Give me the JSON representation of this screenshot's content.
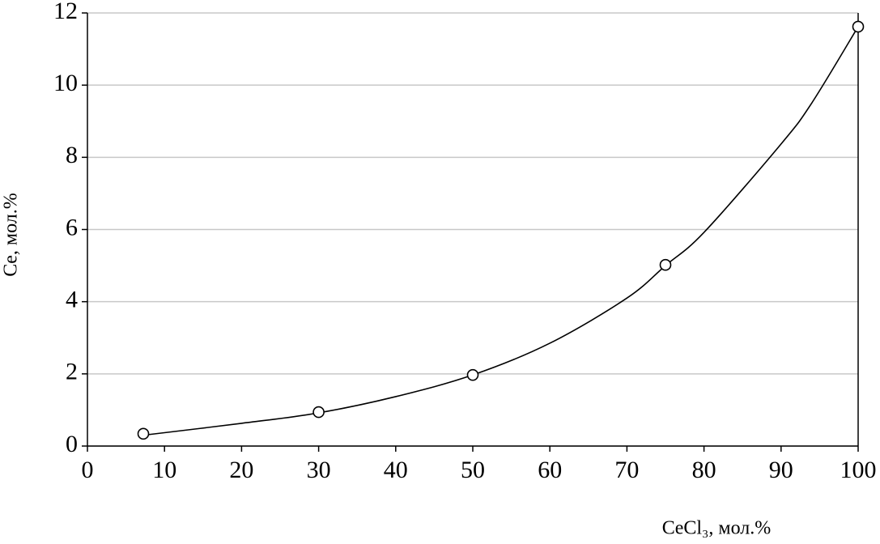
{
  "chart_data": {
    "type": "scatter",
    "x_label": "CeCl₃,  мол.%",
    "y_label": "Ce, мол.%",
    "x": [
      7.25,
      30,
      50,
      75,
      100
    ],
    "values": [
      0.34,
      0.94,
      1.97,
      5.02,
      11.62
    ],
    "curve": {
      "x": [
        7.25,
        20,
        30,
        40,
        50,
        60,
        70,
        75,
        80,
        90,
        94,
        100
      ],
      "values": [
        0.3,
        0.63,
        0.92,
        1.37,
        1.97,
        2.85,
        4.1,
        5.0,
        5.92,
        8.37,
        9.51,
        11.62
      ]
    },
    "color": "#000000",
    "xlim": [
      0,
      100
    ],
    "xticks": [
      0,
      10,
      20,
      30,
      40,
      50,
      60,
      70,
      80,
      90,
      100
    ],
    "ylim": [
      0,
      12
    ],
    "yticks": [
      0,
      2,
      4,
      6,
      8,
      10,
      12
    ],
    "grid": true
  }
}
